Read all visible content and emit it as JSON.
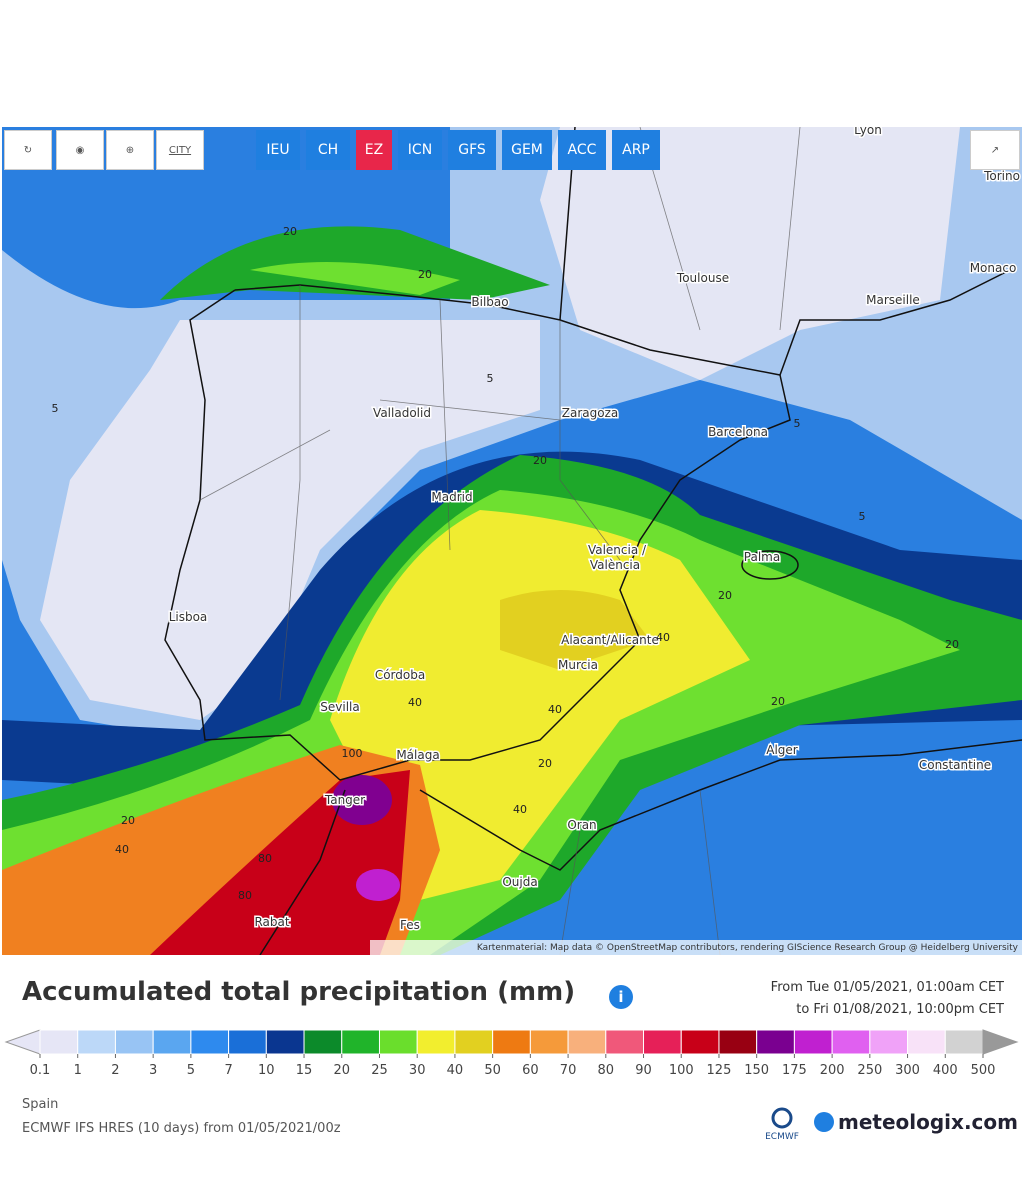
{
  "toolbar": {
    "city_button": "CITY",
    "models": [
      "IEU",
      "CH",
      "EZ",
      "ICN",
      "GFS",
      "GEM",
      "ACC",
      "ARP"
    ],
    "active_model": "EZ"
  },
  "map": {
    "cities": [
      "Lyon",
      "Torino",
      "Monaco",
      "Toulouse",
      "Marseille",
      "Bilbao",
      "Valladolid",
      "Zaragoza",
      "Barcelona",
      "Madrid",
      "Valencia /",
      "València",
      "Palma",
      "Lisboa",
      "Alacant/Alicante",
      "Murcia",
      "Córdoba",
      "Sevilla",
      "Málaga",
      "Alger",
      "Constantine",
      "Tanger",
      "Oran",
      "Oujda",
      "Rabat",
      "Fes"
    ],
    "contour_labels": [
      "20",
      "20",
      "5",
      "5",
      "5",
      "20",
      "20",
      "20",
      "40",
      "40",
      "40",
      "20",
      "100",
      "80",
      "80",
      "40",
      "20",
      "40",
      "20",
      "5"
    ],
    "attribution": "Kartenmaterial: Map data © OpenStreetMap contributors, rendering GIScience Research Group @ Heidelberg University"
  },
  "legend": {
    "title": "Accumulated total precipitation (mm)",
    "period_from": "From Tue 01/05/2021, 01:00am CET",
    "period_to": "to Fri 01/08/2021, 10:00pm CET",
    "ticks": [
      0.1,
      1,
      2,
      3,
      5,
      7,
      10,
      15,
      20,
      25,
      30,
      40,
      50,
      60,
      70,
      80,
      90,
      100,
      125,
      150,
      175,
      200,
      250,
      300,
      400,
      500
    ],
    "colors": [
      "#e6e6f6",
      "#bcd8f8",
      "#98c4f4",
      "#5aa6f0",
      "#2e8aee",
      "#1a6fd8",
      "#0a3690",
      "#0c8a2a",
      "#20b42a",
      "#6ade2c",
      "#f2ee2e",
      "#e2d020",
      "#ee7a12",
      "#f59a3a",
      "#f8b07c",
      "#f0587a",
      "#e62058",
      "#c80018",
      "#980012",
      "#7a0090",
      "#c020d0",
      "#e060f0",
      "#f0a2f8",
      "#f8e2f8",
      "#d2d2d2"
    ]
  },
  "footer": {
    "region": "Spain",
    "model_run": "ECMWF IFS HRES (10 days) from 01/05/2021/00z",
    "ecmwf_logo": "ECMWF",
    "brand": "meteologix.com"
  }
}
